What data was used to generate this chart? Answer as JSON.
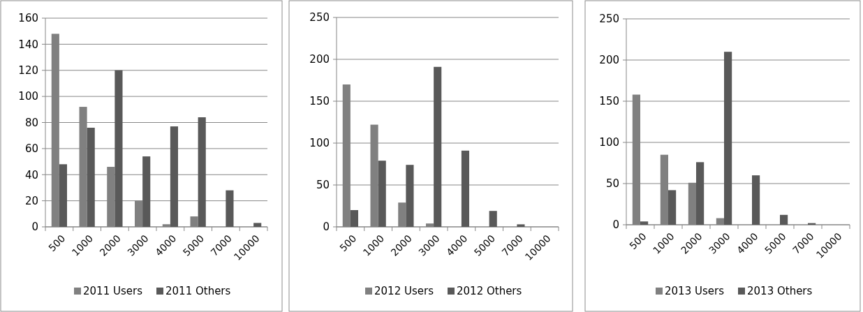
{
  "chart_data": [
    {
      "type": "bar",
      "categories": [
        "500",
        "1000",
        "2000",
        "3000",
        "4000",
        "5000",
        "7000",
        "10000"
      ],
      "ylim": [
        0,
        160
      ],
      "yticks": [
        0,
        20,
        40,
        60,
        80,
        100,
        120,
        140,
        160
      ],
      "grid": "y",
      "legend": "bottom",
      "series": [
        {
          "name": "2011 Users",
          "color": "#808080",
          "values": [
            148,
            92,
            46,
            20,
            2,
            8,
            0,
            0
          ]
        },
        {
          "name": "2011 Others",
          "color": "#595959",
          "values": [
            48,
            76,
            120,
            54,
            77,
            84,
            28,
            3
          ]
        }
      ]
    },
    {
      "type": "bar",
      "categories": [
        "500",
        "1000",
        "2000",
        "3000",
        "4000",
        "5000",
        "7000",
        "10000"
      ],
      "ylim": [
        0,
        250
      ],
      "yticks": [
        0,
        50,
        100,
        150,
        200,
        250
      ],
      "grid": "y",
      "legend": "bottom",
      "series": [
        {
          "name": "2012 Users",
          "color": "#808080",
          "values": [
            170,
            122,
            29,
            4,
            0,
            0,
            0,
            0
          ]
        },
        {
          "name": "2012 Others",
          "color": "#595959",
          "values": [
            20,
            79,
            74,
            191,
            91,
            19,
            3,
            0
          ]
        }
      ]
    },
    {
      "type": "bar",
      "categories": [
        "500",
        "1000",
        "2000",
        "3000",
        "4000",
        "5000",
        "7000",
        "10000"
      ],
      "ylim": [
        0,
        250
      ],
      "yticks": [
        0,
        50,
        100,
        150,
        200,
        250
      ],
      "grid": "y",
      "legend": "bottom",
      "series": [
        {
          "name": "2013 Users",
          "color": "#808080",
          "values": [
            158,
            85,
            51,
            8,
            0,
            0,
            0,
            0
          ]
        },
        {
          "name": "2013 Others",
          "color": "#595959",
          "values": [
            4,
            42,
            76,
            210,
            60,
            12,
            2,
            0
          ]
        }
      ]
    }
  ]
}
